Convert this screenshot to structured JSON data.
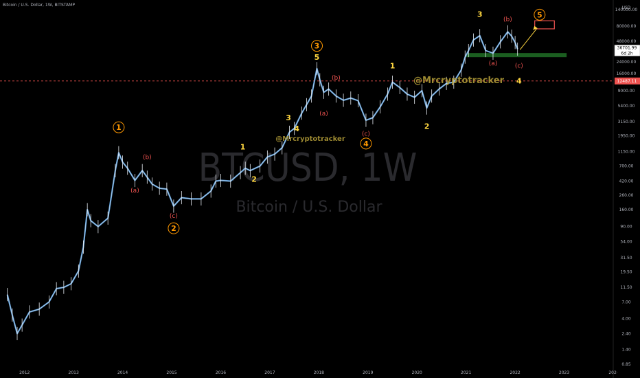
{
  "header": {
    "title": "Bitcoin / U.S. Dollar, 1W, BITSTAMP"
  },
  "watermark": {
    "symbol": "BTCUSD, 1W",
    "name": "Bitcoin / U.S. Dollar"
  },
  "author_tags": [
    "@Mrcryptotracker",
    "@Mrcryptotracker"
  ],
  "price_axis": {
    "unit": "USD",
    "ticks": [
      140000,
      80000,
      48000,
      24000,
      16000,
      9000,
      5400,
      3150,
      1950,
      1150,
      700,
      420,
      260,
      160,
      90,
      54,
      31.5,
      19.5,
      11.5,
      7,
      4,
      2.4,
      1.4,
      0.85
    ],
    "tick_labels": [
      "140000.00",
      "80000.00",
      "48000.00",
      "24000.00",
      "16000.00",
      "9000.00",
      "5400.00",
      "3150.00",
      "1950.00",
      "1150.00",
      "700.00",
      "420.00",
      "260.00",
      "160.00",
      "90.00",
      "54.00",
      "31.50",
      "19.50",
      "11.50",
      "7.00",
      "4.00",
      "2.40",
      "1.40",
      "0.85"
    ],
    "last_price_label": "36701.99",
    "countdown_label": "6d 2h",
    "level_label": "12487.11",
    "level_price": 12487.11
  },
  "time_axis": {
    "ticks": [
      "2012",
      "2013",
      "2014",
      "2015",
      "2016",
      "2017",
      "2018",
      "2019",
      "2020",
      "2021",
      "2022",
      "2023",
      "202·"
    ]
  },
  "colors": {
    "background": "#000000",
    "candles": "#5b9bd5",
    "candles_light": "#e8eef5",
    "wave_yellow": "#ffd740",
    "wave_orange": "#ff9800",
    "wave_red": "#ef5350",
    "support_zone": "#1b5e20",
    "target_box": "#ef5350",
    "arrow": "#ffd740",
    "dashed_level": "#ef5350"
  },
  "chart_data": {
    "type": "line",
    "title": "Bitcoin / U.S. Dollar, 1W, BITSTAMP",
    "xlabel": "",
    "ylabel": "",
    "scale": "log",
    "ylim": [
      0.85,
      140000
    ],
    "xlim": [
      2011.5,
      2024
    ],
    "series": [
      {
        "name": "BTCUSD",
        "x": [
          2011.65,
          2011.75,
          2011.85,
          2011.95,
          2012.1,
          2012.3,
          2012.5,
          2012.65,
          2012.8,
          2012.95,
          2013.1,
          2013.2,
          2013.28,
          2013.35,
          2013.5,
          2013.7,
          2013.85,
          2013.92,
          2014.0,
          2014.1,
          2014.25,
          2014.4,
          2014.5,
          2014.6,
          2014.75,
          2014.9,
          2015.04,
          2015.2,
          2015.4,
          2015.6,
          2015.8,
          2015.9,
          2016.0,
          2016.2,
          2016.4,
          2016.5,
          2016.6,
          2016.8,
          2016.95,
          2017.1,
          2017.25,
          2017.4,
          2017.5,
          2017.65,
          2017.75,
          2017.85,
          2017.96,
          2018.02,
          2018.1,
          2018.2,
          2018.35,
          2018.5,
          2018.65,
          2018.8,
          2018.96,
          2019.1,
          2019.25,
          2019.4,
          2019.5,
          2019.65,
          2019.8,
          2019.95,
          2020.1,
          2020.2,
          2020.3,
          2020.45,
          2020.6,
          2020.75,
          2020.9,
          2020.98,
          2021.05,
          2021.15,
          2021.28,
          2021.4,
          2021.55,
          2021.7,
          2021.85,
          2021.93,
          2022.0,
          2022.05
        ],
        "values": [
          9,
          4.5,
          2.4,
          3.2,
          5,
          5.5,
          7,
          11,
          11.5,
          13,
          20,
          45,
          160,
          110,
          90,
          120,
          600,
          1100,
          800,
          650,
          430,
          600,
          480,
          380,
          330,
          320,
          180,
          240,
          230,
          230,
          300,
          420,
          430,
          420,
          560,
          650,
          600,
          700,
          950,
          1050,
          1300,
          2200,
          2500,
          4200,
          5600,
          7500,
          19000,
          13000,
          8500,
          9500,
          7500,
          6500,
          7000,
          6400,
          3300,
          3600,
          5200,
          8000,
          12000,
          10000,
          8000,
          7200,
          9000,
          5000,
          7500,
          9500,
          11500,
          12000,
          18000,
          28000,
          35000,
          50000,
          58000,
          35000,
          32000,
          47000,
          66000,
          57000,
          46000,
          36702
        ]
      }
    ],
    "annotations": [
      {
        "text": "1",
        "style": "orange-circle",
        "x": 2013.92,
        "y": 2600
      },
      {
        "text": "(a)",
        "style": "red",
        "x": 2014.25,
        "y": 310
      },
      {
        "text": "(b)",
        "style": "red",
        "x": 2014.5,
        "y": 950
      },
      {
        "text": "(c)",
        "style": "red",
        "x": 2015.04,
        "y": 130
      },
      {
        "text": "2",
        "style": "orange-circle",
        "x": 2015.04,
        "y": 85
      },
      {
        "text": "1",
        "style": "yellow",
        "x": 2016.45,
        "y": 1350
      },
      {
        "text": "2",
        "style": "yellow",
        "x": 2016.68,
        "y": 450
      },
      {
        "text": "3",
        "style": "yellow",
        "x": 2017.38,
        "y": 3600
      },
      {
        "text": "4",
        "style": "yellow",
        "x": 2017.55,
        "y": 2500
      },
      {
        "text": "3",
        "style": "orange-circle",
        "x": 2017.96,
        "y": 41000
      },
      {
        "text": "5",
        "style": "yellow",
        "x": 2017.96,
        "y": 28000
      },
      {
        "text": "(a)",
        "style": "red",
        "x": 2018.1,
        "y": 4200
      },
      {
        "text": "(b)",
        "style": "red",
        "x": 2018.35,
        "y": 14000
      },
      {
        "text": "(c)",
        "style": "red",
        "x": 2018.96,
        "y": 2100
      },
      {
        "text": "4",
        "style": "orange-circle",
        "x": 2018.96,
        "y": 1500
      },
      {
        "text": "1",
        "style": "yellow",
        "x": 2019.5,
        "y": 21000
      },
      {
        "text": "2",
        "style": "yellow",
        "x": 2020.2,
        "y": 2700
      },
      {
        "text": "3",
        "style": "yellow",
        "x": 2021.28,
        "y": 120000
      },
      {
        "text": "(b)",
        "style": "red",
        "x": 2021.85,
        "y": 102000
      },
      {
        "text": "5",
        "style": "orange-circle",
        "x": 2022.5,
        "y": 118000
      },
      {
        "text": "(a)",
        "style": "red",
        "x": 2021.55,
        "y": 23000
      },
      {
        "text": "(c)",
        "style": "red",
        "x": 2022.08,
        "y": 21000
      },
      {
        "text": "4",
        "style": "yellow",
        "x": 2022.08,
        "y": 12500
      }
    ],
    "support_zone": {
      "x0": 2021.0,
      "x1": 2023.05,
      "y": 30000
    },
    "target_box": {
      "x0": 2022.4,
      "x1": 2022.8,
      "y0": 73000,
      "y1": 96000
    },
    "arrow": {
      "from": [
        2022.1,
        36000
      ],
      "to": [
        2022.45,
        75000
      ]
    },
    "dashed_level": 12487.11
  }
}
